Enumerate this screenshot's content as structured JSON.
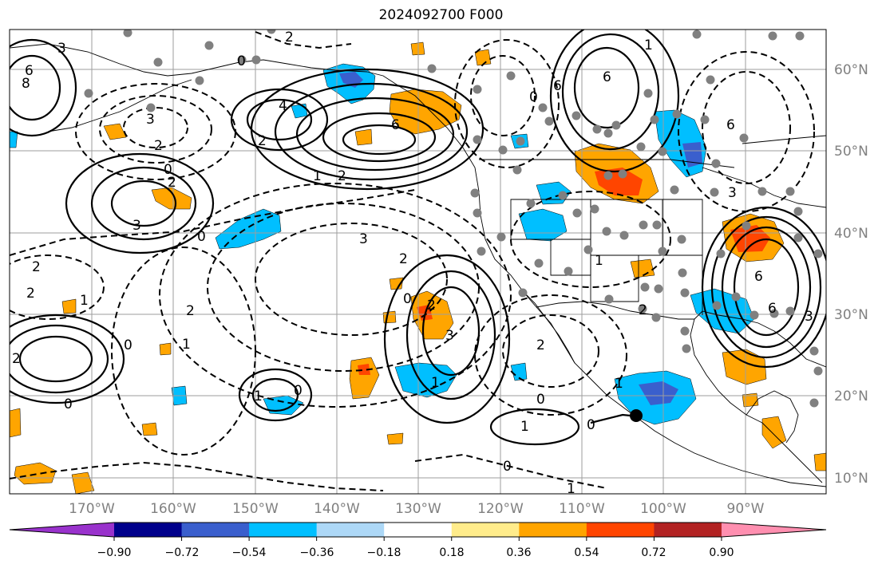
{
  "title": "2024092700 F000",
  "longitude_labels": [
    "170°W",
    "160°W",
    "150°W",
    "140°W",
    "130°W",
    "120°W",
    "110°W",
    "100°W",
    "90°W"
  ],
  "latitude_labels": [
    "60°N",
    "50°N",
    "40°N",
    "30°N",
    "20°N",
    "10°N"
  ],
  "colorbar": {
    "colors": [
      "#9932cc",
      "#00008b",
      "#3a5fcd",
      "#00bfff",
      "#add8f7",
      "#ffffff",
      "#ffec8b",
      "#ffa500",
      "#ff4500",
      "#b22222",
      "#ff8fb0"
    ],
    "tick_labels": [
      "−0.90",
      "−0.72",
      "−0.54",
      "−0.36",
      "−0.18",
      "0.18",
      "0.36",
      "0.54",
      "0.72",
      "0.90"
    ]
  },
  "contour_labels": [
    "3",
    "6",
    "8",
    "2",
    "3",
    "2",
    "0",
    "2",
    "3",
    "0",
    "4",
    "2",
    "0",
    "6",
    "1",
    "2",
    "3",
    "2",
    "2",
    "1",
    "2",
    "0",
    "1",
    "0",
    "1",
    "3",
    "2",
    "0",
    "2",
    "1",
    "0",
    "1",
    "0",
    "1",
    "2",
    "0",
    "1",
    "2",
    "0",
    "6",
    "6",
    "3",
    "1",
    "6",
    "6",
    "6",
    "2",
    "0",
    "1",
    "3"
  ],
  "colors": {
    "gridline": "#9e9e9e",
    "coastline": "#000000",
    "station": "#808080"
  }
}
